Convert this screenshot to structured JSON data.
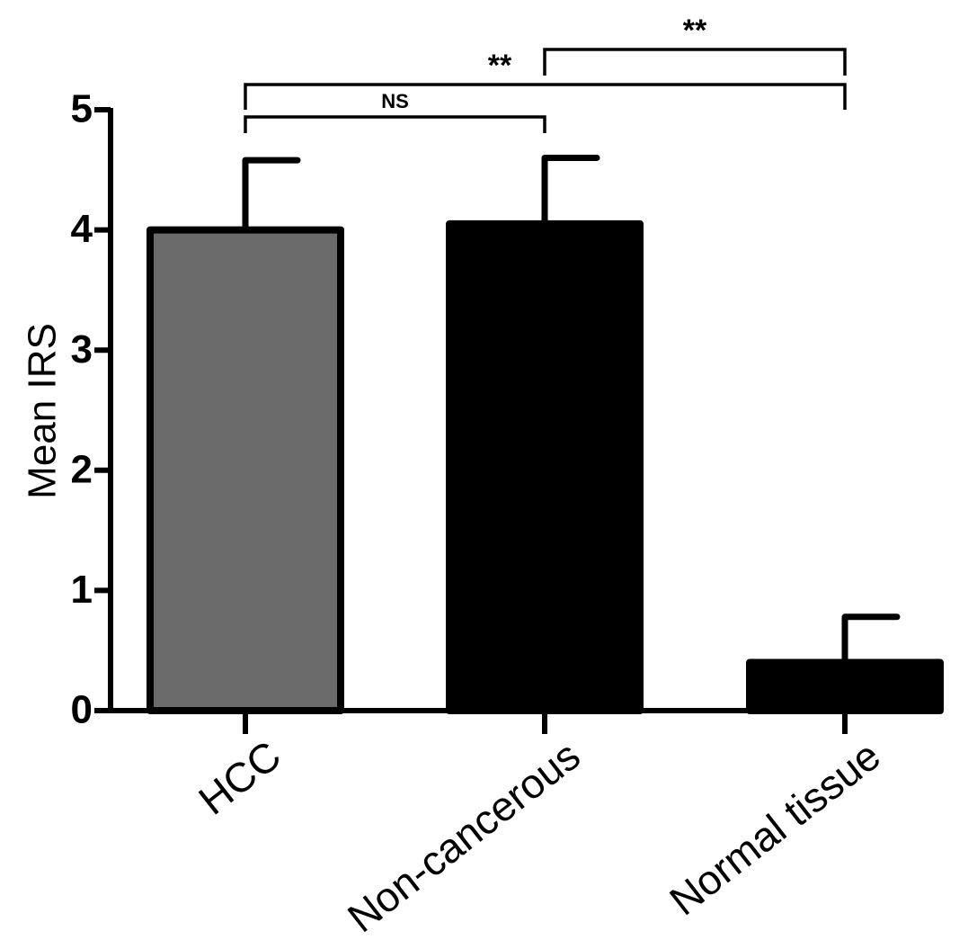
{
  "chart_data": {
    "type": "bar",
    "title": "",
    "xlabel": "",
    "ylabel": "Mean IRS",
    "ylim": [
      0,
      5
    ],
    "yticks": [
      "0",
      "1",
      "2",
      "3",
      "4",
      "5"
    ],
    "grid": false,
    "categories": [
      "HCC",
      "Non-cancerous",
      "Normal tissue"
    ],
    "values": [
      4.0,
      4.05,
      0.4
    ],
    "errors": [
      0.58,
      0.55,
      0.38
    ],
    "colors": [
      "#6b6b6b",
      "#000000",
      "#000000"
    ],
    "significance": [
      {
        "from": "HCC",
        "to": "Non-cancerous",
        "label": "NS"
      },
      {
        "from": "HCC",
        "to": "Normal tissue",
        "label": "**"
      },
      {
        "from": "Non-cancerous",
        "to": "Normal tissue",
        "label": "**"
      }
    ]
  }
}
